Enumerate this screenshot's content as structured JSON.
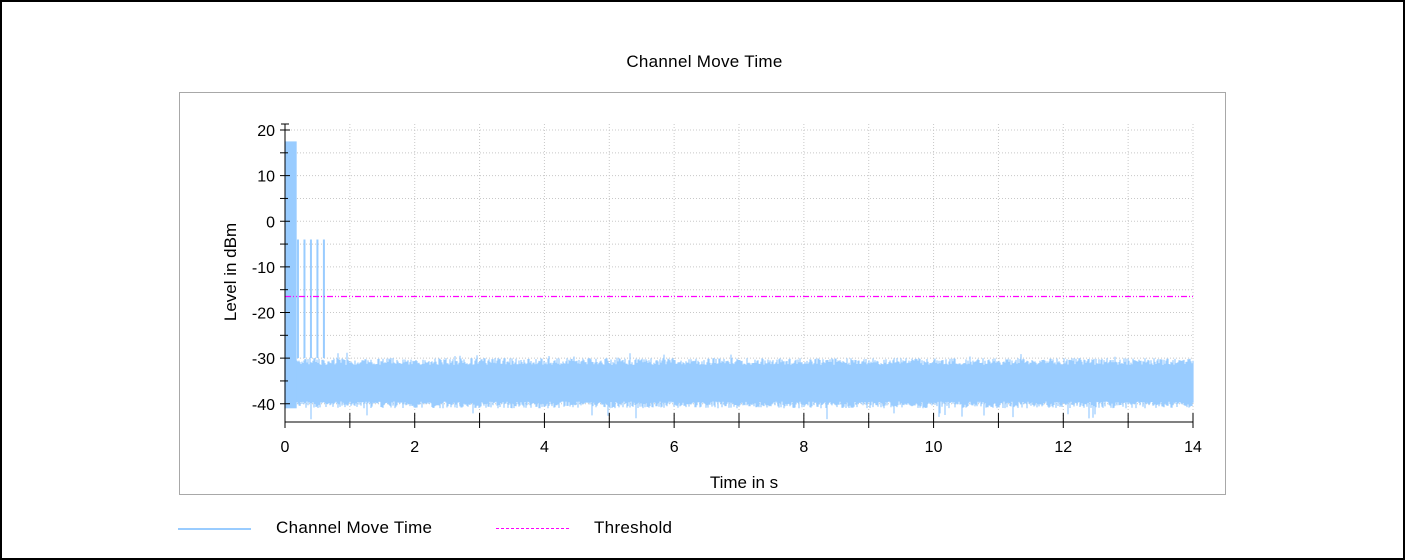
{
  "chart_data": {
    "type": "line",
    "title": "Channel Move Time",
    "xlabel": "Time in s",
    "ylabel": "Level in dBm",
    "xlim": [
      0,
      14
    ],
    "ylim": [
      -44,
      20
    ],
    "x_ticks": [
      0,
      2,
      4,
      6,
      8,
      10,
      12,
      14
    ],
    "y_ticks": [
      20,
      10,
      0,
      -10,
      -20,
      -30,
      -40
    ],
    "grid": true,
    "legend_position": "bottom-left",
    "series": [
      {
        "name": "Channel Move Time",
        "color": "#99ccff",
        "description_values": {
          "noise_floor_range": [
            -41,
            -30
          ],
          "initial_burst": {
            "x_range": [
              0.0,
              0.18
            ],
            "level": 16
          },
          "short_bursts": [
            {
              "x": 0.2,
              "level": -4
            },
            {
              "x": 0.3,
              "level": -4
            },
            {
              "x": 0.4,
              "level": -4
            },
            {
              "x": 0.5,
              "level": -4
            },
            {
              "x": 0.6,
              "level": -4
            }
          ]
        }
      },
      {
        "name": "Threshold",
        "color": "#ff00ff",
        "value": -16.5
      }
    ]
  },
  "colors": {
    "grid": "#c8c8c8",
    "axis": "#000000",
    "signal": "#99ccff",
    "threshold": "#ff00ff"
  }
}
